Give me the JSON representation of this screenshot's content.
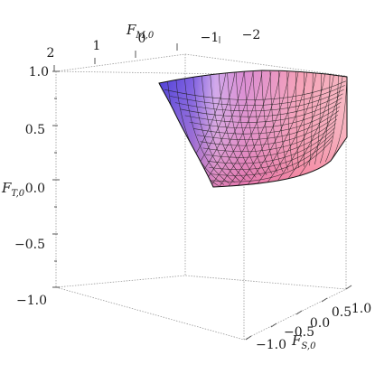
{
  "chart_data": {
    "type": "surface3d",
    "title": "",
    "axes": {
      "x": {
        "label_main": "F",
        "label_sub": "M,0",
        "ticks": [
          "2",
          "1",
          "0",
          "−1",
          "−2"
        ],
        "range": [
          2,
          -2
        ]
      },
      "y": {
        "label_main": "F",
        "label_sub": "S,0",
        "ticks": [
          "−1.0",
          "−0.5",
          "0.0",
          "0.5",
          "1.0"
        ],
        "range": [
          -1,
          1
        ]
      },
      "z": {
        "label_main": "F",
        "label_sub": "T,0",
        "ticks": [
          "1.0",
          "0.5",
          "0.0",
          "−0.5",
          "−1.0"
        ],
        "range": [
          -1,
          1
        ]
      }
    },
    "surface": {
      "description_colors": {
        "left": "#4a3bd6",
        "mid": "#b77ee0",
        "right": "#f6a0b8",
        "bottom": "#f06c88"
      },
      "rim_z": 1.0,
      "min_z": 0.0
    },
    "box": true,
    "grid": false,
    "legend": "none"
  }
}
